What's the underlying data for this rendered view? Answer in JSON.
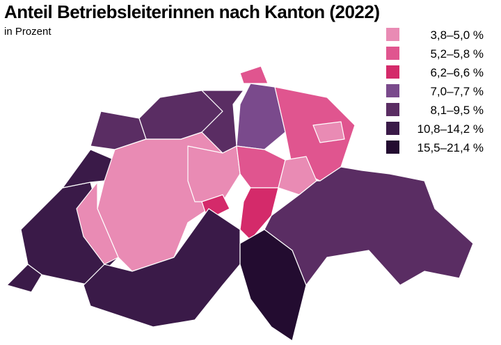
{
  "title": "Anteil Betriebsleiterinnen nach Kanton (2022)",
  "subtitle": "in Prozent",
  "legend": [
    {
      "label": "3,8–5,0 %",
      "color": "#e98bb4"
    },
    {
      "label": "5,2–5,8 %",
      "color": "#e0558f"
    },
    {
      "label": "6,2–6,6 %",
      "color": "#d42a6a"
    },
    {
      "label": "7,0–7,7 %",
      "color": "#7a4a8c"
    },
    {
      "label": "8,1–9,5 %",
      "color": "#5a2d63"
    },
    {
      "label": "10,8–14,2 %",
      "color": "#3a1a48"
    },
    {
      "label": "15,5–21,4 %",
      "color": "#230c30"
    }
  ]
}
